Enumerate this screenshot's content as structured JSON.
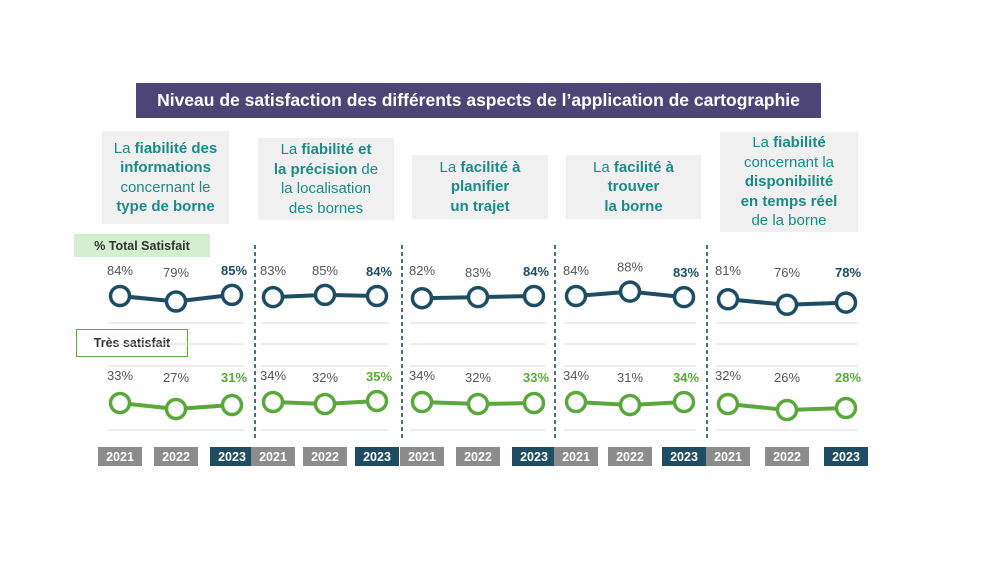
{
  "title": "Niveau de satisfaction des différents aspects de l’application de cartographie",
  "labels": {
    "total": "% Total Satisfait",
    "tres": "Très satisfait"
  },
  "colors": {
    "banner": "#4e4577",
    "category_text": "#1b8a88",
    "total_line": "#1e4d63",
    "tres_line": "#5aa83c",
    "year_gray": "#8c8c8c",
    "year_current": "#1e4d63"
  },
  "categories": [
    {
      "lines": [
        [
          {
            "t": "La ",
            "b": false
          },
          {
            "t": "fiabilité des",
            "b": true
          }
        ],
        [
          {
            "t": "informations",
            "b": true
          }
        ],
        [
          {
            "t": "concernant le",
            "b": false
          }
        ],
        [
          {
            "t": "type de borne",
            "b": true
          }
        ]
      ]
    },
    {
      "lines": [
        [
          {
            "t": "La ",
            "b": false
          },
          {
            "t": "fiabilité et",
            "b": true
          }
        ],
        [
          {
            "t": "la précision",
            "b": true
          },
          {
            "t": " de",
            "b": false
          }
        ],
        [
          {
            "t": "la localisation",
            "b": false
          }
        ],
        [
          {
            "t": "des bornes",
            "b": false
          }
        ]
      ]
    },
    {
      "lines": [
        [
          {
            "t": "La ",
            "b": false
          },
          {
            "t": "facilité à",
            "b": true
          }
        ],
        [
          {
            "t": "planifier",
            "b": true
          }
        ],
        [
          {
            "t": "un trajet",
            "b": true
          }
        ]
      ]
    },
    {
      "lines": [
        [
          {
            "t": "La ",
            "b": false
          },
          {
            "t": "facilité à",
            "b": true
          }
        ],
        [
          {
            "t": "trouver",
            "b": true
          }
        ],
        [
          {
            "t": "la borne",
            "b": true
          }
        ]
      ]
    },
    {
      "lines": [
        [
          {
            "t": "La ",
            "b": false
          },
          {
            "t": "fiabilité",
            "b": true
          }
        ],
        [
          {
            "t": "concernant la",
            "b": false
          }
        ],
        [
          {
            "t": "disponibilité",
            "b": true
          }
        ],
        [
          {
            "t": "en temps réel",
            "b": true
          }
        ],
        [
          {
            "t": "de la borne",
            "b": false
          }
        ]
      ]
    }
  ],
  "chart_data": {
    "type": "line",
    "x": [
      "2021",
      "2022",
      "2023"
    ],
    "groups": [
      {
        "total": [
          84,
          79,
          85
        ],
        "tres": [
          33,
          27,
          31
        ]
      },
      {
        "total": [
          83,
          85,
          84
        ],
        "tres": [
          34,
          32,
          35
        ]
      },
      {
        "total": [
          82,
          83,
          84
        ],
        "tres": [
          34,
          32,
          33
        ]
      },
      {
        "total": [
          84,
          88,
          83
        ],
        "tres": [
          34,
          31,
          34
        ]
      },
      {
        "total": [
          81,
          76,
          78
        ],
        "tres": [
          32,
          26,
          28
        ]
      }
    ],
    "unit": "%",
    "grid": true
  }
}
